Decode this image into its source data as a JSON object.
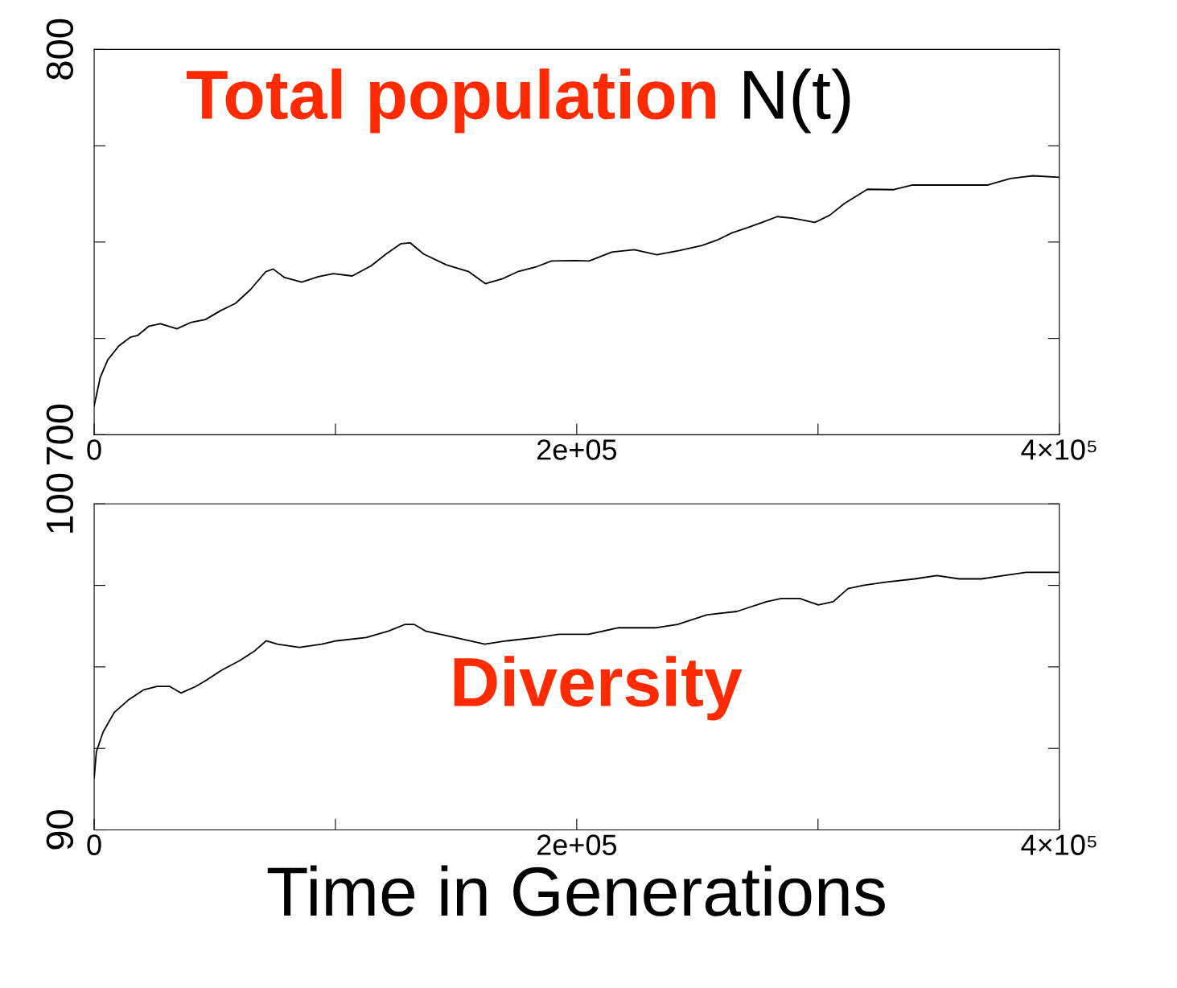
{
  "chart_data": [
    {
      "type": "line",
      "title": "Total population",
      "subtitle": "N(t)",
      "x": [
        0,
        2494,
        5612,
        10288,
        14965,
        18083,
        22759,
        27436,
        34295,
        39906,
        46142,
        52377,
        58613,
        64848,
        71084,
        74201,
        78878,
        86049,
        92907,
        99143,
        106937,
        114731,
        120967,
        127202,
        130943,
        136555,
        145908,
        155261,
        162120,
        169291,
        175526,
        183320,
        189556,
        198909,
        205144,
        214498,
        223851,
        233204,
        242557,
        251910,
        258146,
        264381,
        270617,
        276852,
        283088,
        289323,
        298676,
        304912,
        311147,
        320500,
        331412,
        339206,
        351677,
        370383,
        379736,
        389089,
        400000
      ],
      "series": [
        {
          "color": "#000000",
          "values": [
            707.5,
            714.8,
            719.4,
            723.1,
            725.3,
            725.8,
            728.2,
            728.8,
            727.5,
            729.1,
            729.9,
            732.2,
            734.1,
            737.7,
            742.3,
            743.0,
            740.8,
            739.6,
            741.0,
            741.8,
            741.2,
            743.8,
            746.9,
            749.6,
            749.8,
            746.9,
            744.1,
            742.3,
            739.2,
            740.5,
            742.3,
            743.6,
            745.1,
            745.2,
            745.1,
            747.4,
            748.0,
            746.7,
            747.8,
            749.1,
            750.5,
            752.4,
            753.7,
            755.1,
            756.6,
            756.2,
            755.1,
            757.0,
            760.1,
            763.7,
            763.6,
            764.8,
            764.8,
            764.8,
            766.5,
            767.2,
            766.8
          ]
        }
      ],
      "xlim": [
        0,
        400000
      ],
      "xticks": [
        0,
        {
          "value": 100000,
          "label": null
        },
        {
          "value": 200000,
          "label": "2e+05"
        },
        {
          "value": 300000,
          "label": null
        },
        {
          "value": 400000,
          "label": "4×10⁵"
        }
      ],
      "ylim": [
        700,
        800
      ],
      "yticks": [
        700,
        {
          "value": 725,
          "label": null
        },
        {
          "value": 750,
          "label": null
        },
        {
          "value": 775,
          "label": null
        },
        800
      ],
      "grid": false,
      "legend": false,
      "marker": "none",
      "line_style": "solid"
    },
    {
      "type": "line",
      "title": "Diversity",
      "xlabel": "Time in Generations",
      "x": [
        0,
        922,
        3686,
        8294,
        14438,
        20582,
        26112,
        31334,
        35942,
        42086,
        46694,
        52838,
        60518,
        66662,
        71270,
        75878,
        85094,
        94310,
        100454,
        112742,
        121958,
        128716,
        132710,
        137318,
        149606,
        161894,
        171110,
        183398,
        192614,
        204902,
        217190,
        232550,
        241766,
        254054,
        266342,
        278630,
        284774,
        292454,
        300134,
        306278,
        312422,
        318566,
        327782,
        340070,
        349286,
        358502,
        367718,
        376934,
        386150,
        395366,
        400000
      ],
      "series": [
        {
          "color": "#000000",
          "values": [
            91.6,
            92.4,
            93.0,
            93.6,
            94.0,
            94.3,
            94.4,
            94.4,
            94.2,
            94.4,
            94.6,
            94.9,
            95.2,
            95.5,
            95.8,
            95.7,
            95.6,
            95.7,
            95.8,
            95.9,
            96.1,
            96.3,
            96.3,
            96.1,
            95.9,
            95.7,
            95.8,
            95.9,
            96.0,
            96.0,
            96.2,
            96.2,
            96.3,
            96.6,
            96.7,
            97.0,
            97.1,
            97.1,
            96.9,
            97.0,
            97.4,
            97.5,
            97.6,
            97.7,
            97.8,
            97.7,
            97.7,
            97.8,
            97.9,
            97.9,
            97.9
          ]
        }
      ],
      "xlim": [
        0,
        400000
      ],
      "xticks": [
        0,
        {
          "value": 100000,
          "label": null
        },
        {
          "value": 200000,
          "label": "2e+05"
        },
        {
          "value": 300000,
          "label": null
        },
        {
          "value": 400000,
          "label": "4×10⁵"
        }
      ],
      "ylim": [
        90,
        100
      ],
      "yticks": [
        90,
        {
          "value": 92.5,
          "label": null
        },
        {
          "value": 95,
          "label": null
        },
        {
          "value": 97.5,
          "label": null
        },
        100
      ],
      "grid": false,
      "legend": false,
      "marker": "none",
      "line_style": "solid"
    }
  ]
}
